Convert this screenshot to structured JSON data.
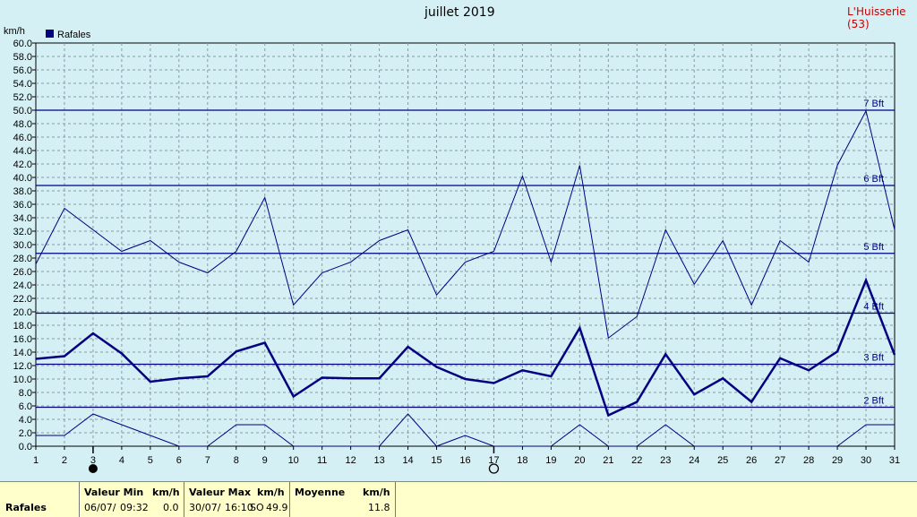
{
  "header": {
    "title": "juillet 2019",
    "station": "L'Huisserie (53)",
    "unit": "km/h",
    "legend": "Rafales"
  },
  "colors": {
    "background": "#d4f0f4",
    "series": "#000080",
    "grid": "#8a9aa8",
    "footer": "#ffffcc"
  },
  "chart_data": {
    "type": "line",
    "title": "juillet 2019",
    "ylabel": "km/h",
    "xlim": [
      1,
      31
    ],
    "ylim": [
      0,
      60
    ],
    "x": [
      1,
      2,
      3,
      4,
      5,
      6,
      7,
      8,
      9,
      10,
      11,
      12,
      13,
      14,
      15,
      16,
      17,
      18,
      19,
      20,
      21,
      22,
      23,
      24,
      25,
      26,
      27,
      28,
      29,
      30,
      31
    ],
    "y_ticks": [
      "0.0",
      "2.0",
      "4.0",
      "6.0",
      "8.0",
      "10.0",
      "12.0",
      "14.0",
      "16.0",
      "18.0",
      "20.0",
      "22.0",
      "24.0",
      "26.0",
      "28.0",
      "30.0",
      "32.0",
      "34.0",
      "36.0",
      "38.0",
      "40.0",
      "42.0",
      "44.0",
      "46.0",
      "48.0",
      "50.0",
      "52.0",
      "54.0",
      "56.0",
      "58.0",
      "60.0"
    ],
    "grid": true,
    "legend_position": "top-left",
    "series": [
      {
        "name": "Rafales",
        "values": [
          13.0,
          13.4,
          16.8,
          13.8,
          9.6,
          10.1,
          10.4,
          14.1,
          15.4,
          7.4,
          10.2,
          10.1,
          10.1,
          14.8,
          11.8,
          10.0,
          9.4,
          11.3,
          10.4,
          17.6,
          4.6,
          6.6,
          13.7,
          7.7,
          10.1,
          6.6,
          13.1,
          11.3,
          14.1,
          24.7,
          13.6
        ]
      },
      {
        "name": "",
        "values": [
          27.1,
          35.4,
          32.2,
          29.0,
          30.6,
          27.4,
          25.8,
          29.0,
          37.0,
          21.0,
          25.8,
          27.4,
          30.6,
          32.2,
          22.5,
          27.4,
          29.0,
          40.2,
          27.4,
          41.8,
          16.1,
          19.3,
          32.2,
          24.1,
          30.6,
          21.0,
          30.6,
          27.4,
          41.8,
          49.9,
          32.2
        ]
      },
      {
        "name": "",
        "values": [
          1.6,
          1.6,
          4.8,
          3.2,
          1.6,
          0.0,
          0.0,
          3.2,
          3.2,
          0.0,
          0.0,
          0.0,
          0.0,
          4.8,
          0.0,
          1.6,
          0.0,
          0.0,
          0.0,
          3.2,
          0.0,
          0.0,
          3.2,
          0.0,
          0.0,
          0.0,
          0.0,
          0.0,
          0.0,
          3.2,
          3.2
        ]
      }
    ],
    "reference_lines": [
      {
        "label": "2 Bft",
        "value": 5.8
      },
      {
        "label": "3 Bft",
        "value": 12.2
      },
      {
        "label": "4 Bft",
        "value": 19.8
      },
      {
        "label": "5 Bft",
        "value": 28.7
      },
      {
        "label": "6 Bft",
        "value": 38.8
      },
      {
        "label": "7 Bft",
        "value": 50.0
      }
    ],
    "moon_phases": [
      {
        "day": 3,
        "phase": "new"
      },
      {
        "day": 17,
        "phase": "full"
      }
    ]
  },
  "footer": {
    "row_label": "Rafales",
    "min": {
      "header": "Valeur Min",
      "unit": "km/h",
      "date": "06/07/",
      "time": "09:32",
      "value": "0.0"
    },
    "max": {
      "header": "Valeur Max",
      "unit": "km/h",
      "date": "30/07/",
      "time": "16:10",
      "dir": "SO",
      "value": "49.9"
    },
    "avg": {
      "header": "Moyenne",
      "unit": "km/h",
      "value": "11.8"
    }
  }
}
